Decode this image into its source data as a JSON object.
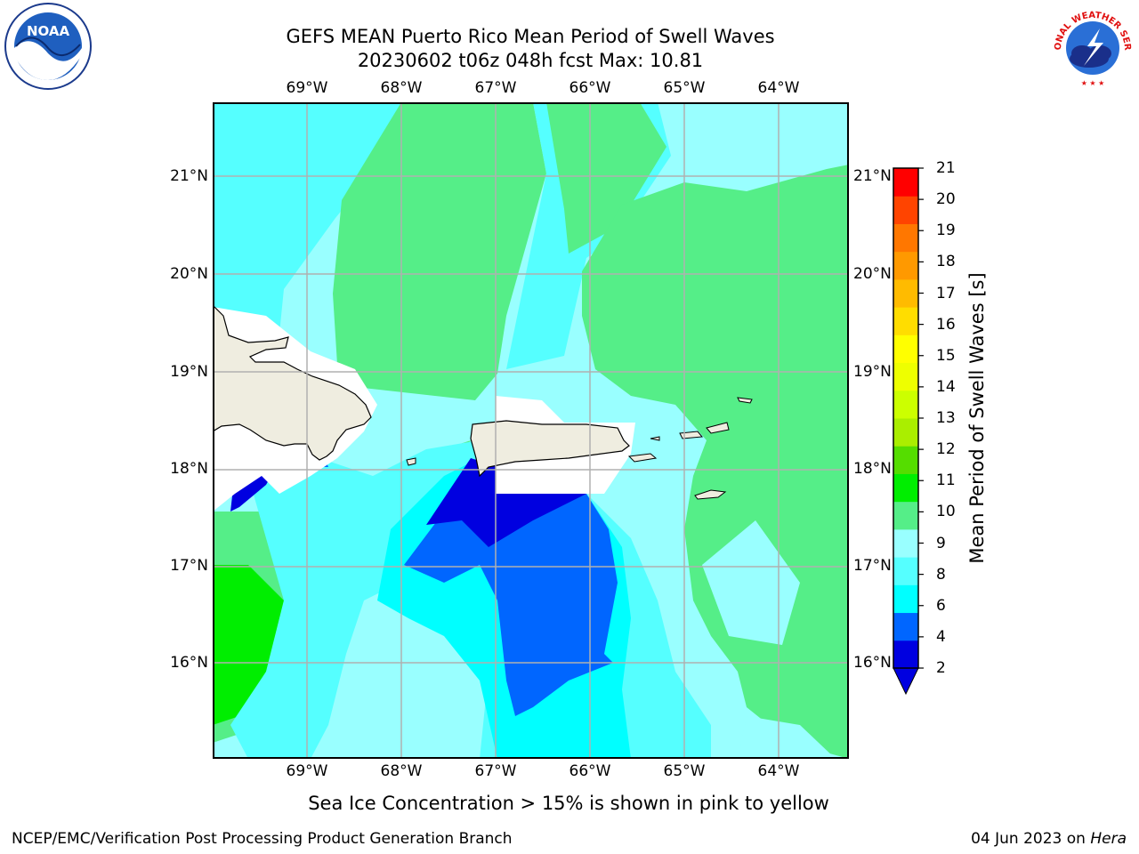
{
  "header": {
    "title_line1": "GEFS MEAN Puerto Rico Mean Period of Swell Waves",
    "title_line2": "20230602 t06z 048h fcst   Max: 10.81"
  },
  "logos": {
    "left": {
      "name": "noaa-logo",
      "text": "NOAA"
    },
    "right": {
      "name": "nws-logo",
      "text": "NATIONAL WEATHER SERVICE"
    }
  },
  "map": {
    "lon_labels": [
      "69°W",
      "68°W",
      "67°W",
      "66°W",
      "65°W",
      "64°W"
    ],
    "lat_labels": [
      "21°N",
      "20°N",
      "19°N",
      "18°N",
      "17°N",
      "16°N"
    ],
    "land_color": "#efede0",
    "masked_color": "#ffffff",
    "grid_color": "#b0b0b0"
  },
  "colorbar": {
    "title": "Mean Period of Swell Waves [s]",
    "tick_labels": [
      "21",
      "20",
      "19",
      "18",
      "17",
      "16",
      "15",
      "14",
      "13",
      "12",
      "11",
      "10",
      "9",
      "8",
      "6",
      "4",
      "2"
    ],
    "colors": [
      "#0000e0",
      "#0066ff",
      "#00ffff",
      "#55ffff",
      "#99ffff",
      "#55ee88",
      "#00ee00",
      "#55dd00",
      "#aaee00",
      "#ccff00",
      "#eeff00",
      "#ffff00",
      "#ffdd00",
      "#ffbb00",
      "#ff9900",
      "#ff7700",
      "#ff4400",
      "#ff0000"
    ]
  },
  "footer": {
    "note": "Sea Ice Concentration > 15% is shown in pink to yellow",
    "credit_left": "NCEP/EMC/Verification Post Processing Product Generation Branch",
    "credit_date": "04 Jun 2023 on ",
    "credit_machine": "Hera"
  }
}
